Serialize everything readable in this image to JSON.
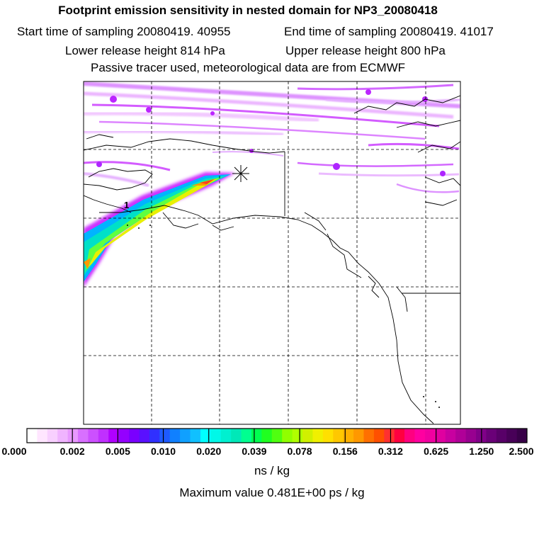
{
  "header": {
    "title": "Footprint emission sensitivity in nested domain for NP3_20080418",
    "start_time": "Start time of sampling 20080419. 40955",
    "end_time": "End time of sampling 20080419. 41017",
    "lower_height": "Lower release height  814 hPa",
    "upper_height": "Upper release height  800 hPa",
    "tracer_note": "Passive tracer used, meteorological data are from ECMWF"
  },
  "map": {
    "background": "#ffffff",
    "frame_color": "#000000",
    "grid_style": "dashed",
    "release_marker": "asterisk",
    "contour_label": "1",
    "plume_colors": [
      "#cc33ff",
      "#00b4ff",
      "#00e0c8",
      "#60ff40",
      "#e8f000",
      "#ff9a00",
      "#ff4020"
    ]
  },
  "colorbar": {
    "tick_labels": [
      "0.000",
      "0.002",
      "0.005",
      "0.010",
      "0.020",
      "0.039",
      "0.078",
      "0.156",
      "0.312",
      "0.625",
      "1.250",
      "2.500"
    ],
    "colors": [
      "#ffffff",
      "#ffe6ff",
      "#f8d0ff",
      "#f0b4ff",
      "#e898ff",
      "#d870ff",
      "#cc50ff",
      "#c030ff",
      "#b000ff",
      "#9400ff",
      "#7a00ff",
      "#5a10ff",
      "#3030ff",
      "#1e5aff",
      "#1080ff",
      "#10a0ff",
      "#10c0ff",
      "#00ffff",
      "#00f8e8",
      "#00f0d0",
      "#00e8b8",
      "#00ff90",
      "#00ff50",
      "#20ff20",
      "#50ff10",
      "#90ff00",
      "#b0ff00",
      "#d0f000",
      "#f0f000",
      "#ffe000",
      "#ffc800",
      "#ffb000",
      "#ff9800",
      "#ff7000",
      "#ff5000",
      "#ff3030",
      "#ff0040",
      "#ff0080",
      "#ff00a0",
      "#f000a0",
      "#e000a0",
      "#c800a0",
      "#b00098",
      "#980090",
      "#800088",
      "#6a0078",
      "#580068",
      "#480058",
      "#380048"
    ],
    "units": "ns / kg",
    "max_value": "Maximum value  0.481E+00 ps / kg"
  }
}
